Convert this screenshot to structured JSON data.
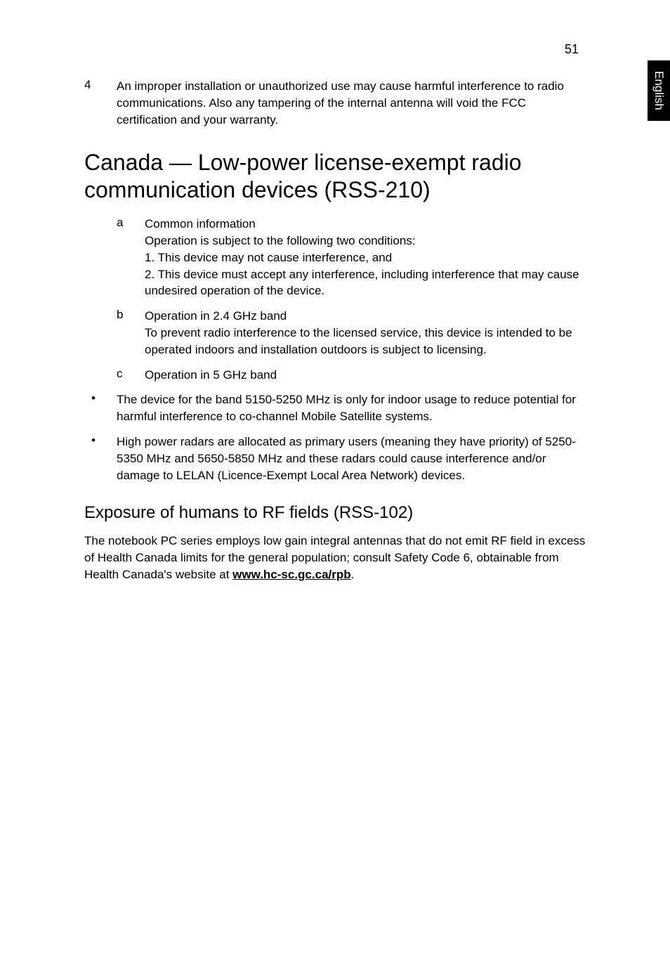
{
  "page_number": "51",
  "side_tab": "English",
  "item4_num": "4",
  "item4_text": "An improper installation or unauthorized use may cause harmful interference to radio communications. Also any tampering of the internal antenna will void the FCC certification and your warranty.",
  "heading1": "Canada — Low-power license-exempt radio communication devices (RSS-210)",
  "letters": {
    "a": {
      "letter": "a",
      "line1": "Common information",
      "line2": "Operation is subject to the following two conditions:",
      "line3": "1. This device may not cause interference, and",
      "line4": "2. This device must accept any interference, including interference that may cause undesired operation of the device."
    },
    "b": {
      "letter": "b",
      "line1": "Operation in 2.4 GHz band",
      "line2": "To prevent radio interference to the licensed service, this device is intended to be operated indoors and installation outdoors is subject to licensing."
    },
    "c": {
      "letter": "c",
      "line1": "Operation in 5 GHz band"
    }
  },
  "bullets": {
    "b1": "The device for the band 5150-5250 MHz is only for indoor usage to reduce potential for harmful interference to co-channel Mobile Satellite systems.",
    "b2": "High power radars are allocated as primary users (meaning they have priority) of 5250-5350 MHz and 5650-5850 MHz and these radars could cause interference and/or damage to LELAN (Licence-Exempt Local Area Network) devices."
  },
  "heading2": "Exposure of humans to RF fields (RSS-102)",
  "closing_before": "The notebook PC series employs low gain integral antennas that do not emit RF field in excess of Health Canada limits for the general population; consult Safety Code 6, obtainable from Health Canada's website at ",
  "closing_link": "www.hc-sc.gc.ca/rpb",
  "closing_after": ".",
  "bullet_glyph": "•"
}
